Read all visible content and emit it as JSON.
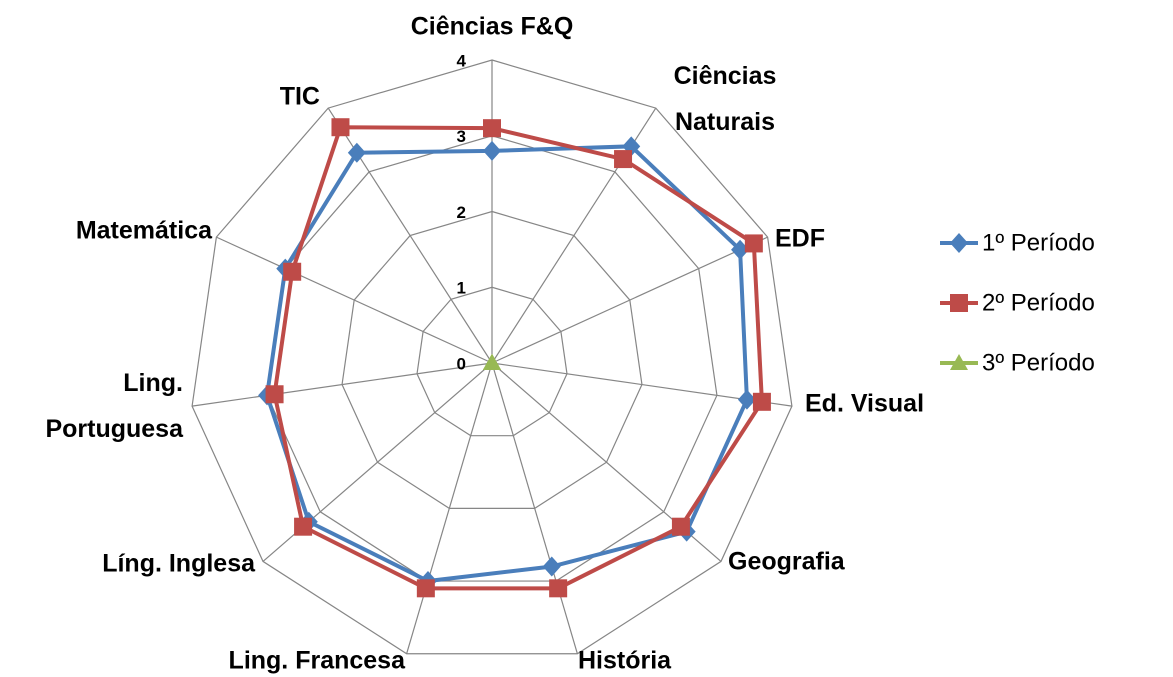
{
  "chart_data": {
    "type": "radar",
    "categories": [
      "Ciências F&Q",
      "Ciências Naturais",
      "EDF",
      "Ed. Visual",
      "Geografia",
      "História",
      "Ling. Francesa",
      "Líng. Inglesa",
      "Ling. Portuguesa",
      "Matemática",
      "TIC"
    ],
    "series": [
      {
        "name": "1º Período",
        "color": "#4a7ebb",
        "marker": "diamond",
        "values": [
          2.8,
          3.4,
          3.6,
          3.4,
          3.4,
          2.8,
          3.0,
          3.2,
          3.0,
          3.0,
          3.3
        ]
      },
      {
        "name": "2º Período",
        "color": "#be4b48",
        "marker": "square",
        "values": [
          3.1,
          3.2,
          3.8,
          3.6,
          3.3,
          3.1,
          3.1,
          3.3,
          2.9,
          2.9,
          3.7
        ]
      },
      {
        "name": "3º Período",
        "color": "#98b954",
        "marker": "triangle",
        "values": [
          0,
          0,
          0,
          0,
          0,
          0,
          0,
          0,
          0,
          0,
          0
        ]
      }
    ],
    "rlim": [
      0,
      4
    ],
    "rticks": [
      0,
      1,
      2,
      3,
      4
    ],
    "grid": true,
    "legend": "right"
  }
}
